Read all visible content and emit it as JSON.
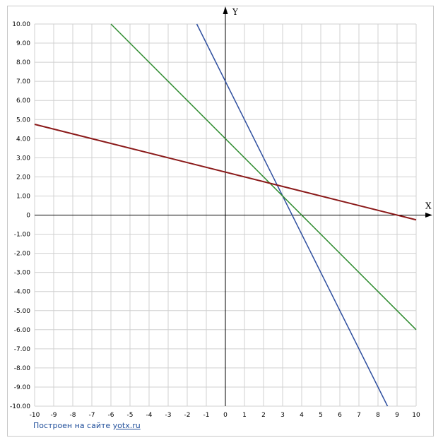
{
  "chart_data": {
    "type": "line",
    "title": "",
    "xlabel": "X",
    "ylabel": "Y",
    "xlim": [
      -10,
      10
    ],
    "ylim": [
      -10,
      10
    ],
    "grid": true,
    "x_tick_labels": [
      "-10",
      "-9",
      "-8",
      "-7",
      "-6",
      "-5",
      "-4",
      "-3",
      "-2",
      "-1",
      "0",
      "1",
      "2",
      "3",
      "4",
      "5",
      "6",
      "7",
      "8",
      "9",
      "10"
    ],
    "y_tick_labels": [
      "10.00",
      "9.00",
      "8.00",
      "7.00",
      "6.00",
      "5.00",
      "4.00",
      "3.00",
      "2.00",
      "1.00",
      "0",
      "-1.00",
      "-2.00",
      "-3.00",
      "-4.00",
      "-5.00",
      "-6.00",
      "-7.00",
      "-8.00",
      "-9.00",
      "-10.00"
    ],
    "series": [
      {
        "color": "#2f4f9f",
        "x": [
          -1.5,
          8.5
        ],
        "y": [
          10,
          -10
        ]
      },
      {
        "color": "#2e8b2e",
        "x": [
          -6,
          10
        ],
        "y": [
          10,
          -6
        ]
      },
      {
        "color": "#8b1a1a",
        "x": [
          -10,
          10
        ],
        "y": [
          4.75,
          -0.25
        ]
      }
    ]
  },
  "credit": {
    "prefix": "Построен на сайте ",
    "link": "yotx.ru"
  }
}
